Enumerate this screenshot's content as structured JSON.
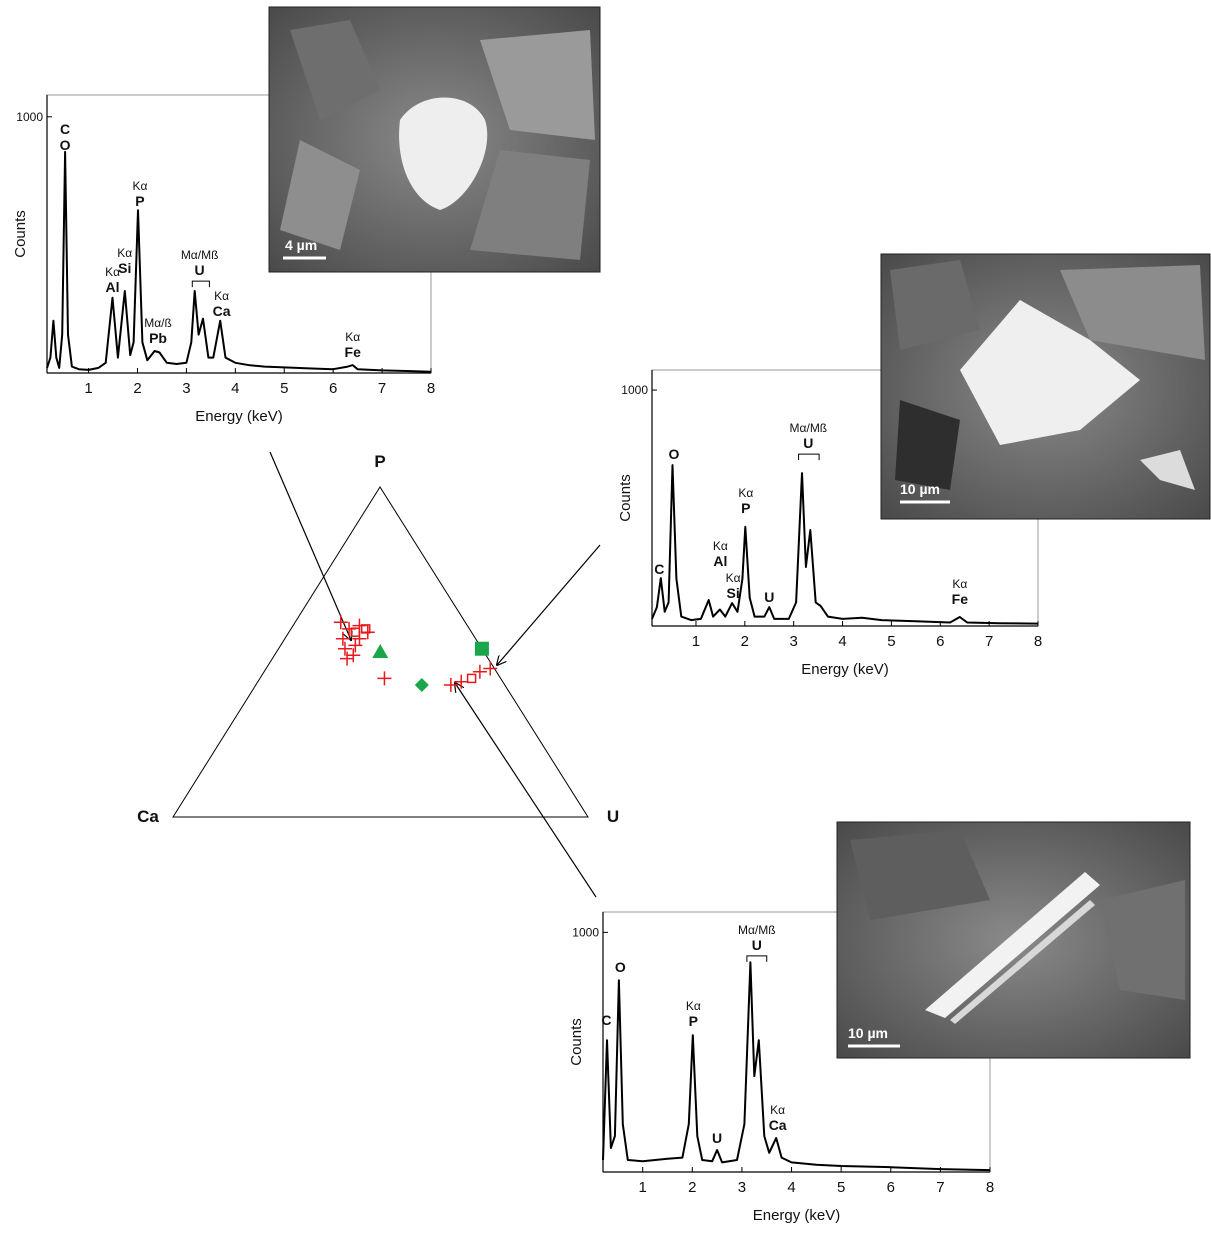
{
  "chart_data": [
    {
      "type": "spectrum",
      "xlabel": "Energy (keV)",
      "ylabel": "Counts",
      "xlim": [
        0.15,
        8
      ],
      "xticks": [
        1,
        2,
        3,
        4,
        5,
        6,
        7,
        8
      ],
      "ylim": [
        0,
        1085
      ],
      "yticks": [
        1000
      ],
      "color": "#000000",
      "x": [
        0.15,
        0.22,
        0.28,
        0.34,
        0.4,
        0.46,
        0.52,
        0.58,
        0.66,
        0.8,
        1.0,
        1.2,
        1.35,
        1.49,
        1.6,
        1.74,
        1.85,
        1.92,
        2.01,
        2.1,
        2.2,
        2.35,
        2.45,
        2.6,
        2.8,
        3.0,
        3.1,
        3.17,
        3.25,
        3.34,
        3.45,
        3.55,
        3.69,
        3.8,
        4.0,
        4.3,
        4.6,
        5.0,
        5.5,
        6.0,
        6.3,
        6.4,
        6.5,
        7.0,
        7.5,
        8.0
      ],
      "values": [
        20,
        60,
        204,
        60,
        20,
        150,
        863,
        150,
        25,
        15,
        12,
        20,
        40,
        294,
        60,
        320,
        70,
        120,
        635,
        120,
        50,
        86,
        80,
        40,
        35,
        40,
        120,
        320,
        150,
        212,
        60,
        60,
        204,
        60,
        40,
        30,
        25,
        22,
        18,
        15,
        25,
        31,
        15,
        10,
        8,
        5
      ],
      "annotations": [
        {
          "x": 0.52,
          "y": 870,
          "texts": [
            "C",
            "O"
          ]
        },
        {
          "x": 1.49,
          "y": 316,
          "texts": [
            "Kα",
            "Al"
          ]
        },
        {
          "x": 1.74,
          "y": 390,
          "texts": [
            "Kα",
            "Si"
          ]
        },
        {
          "x": 2.05,
          "y": 652,
          "texts": [
            "Kα",
            "P"
          ]
        },
        {
          "x": 2.42,
          "y": 117,
          "texts": [
            "Mα/ß",
            "Pb"
          ]
        },
        {
          "x": 3.27,
          "y": 382,
          "texts": [
            "Mα/Mß",
            "U"
          ],
          "bracket": [
            3.12,
            3.47
          ]
        },
        {
          "x": 3.72,
          "y": 222,
          "texts": [
            "Kα",
            "Ca"
          ]
        },
        {
          "x": 6.4,
          "y": 62,
          "texts": [
            "Kα",
            "Fe"
          ]
        }
      ]
    },
    {
      "type": "ternary",
      "axes": [
        "P",
        "Ca",
        "U"
      ],
      "series": [
        {
          "color": "#e8191c",
          "marker": "plus",
          "values": [
            [
              0.59,
              0.3,
              0.11
            ],
            [
              0.57,
              0.29,
              0.14
            ],
            [
              0.58,
              0.26,
              0.16
            ],
            [
              0.54,
              0.32,
              0.14
            ],
            [
              0.52,
              0.3,
              0.18
            ],
            [
              0.51,
              0.33,
              0.16
            ],
            [
              0.49,
              0.32,
              0.19
            ],
            [
              0.56,
              0.25,
              0.19
            ],
            [
              0.54,
              0.28,
              0.18
            ],
            [
              0.48,
              0.34,
              0.18
            ],
            [
              0.42,
              0.28,
              0.3
            ],
            [
              0.4,
              0.13,
              0.47
            ],
            [
              0.41,
              0.1,
              0.49
            ],
            [
              0.44,
              0.04,
              0.52
            ],
            [
              0.45,
              0.01,
              0.54
            ]
          ]
        },
        {
          "color": "#e8191c",
          "marker": "open-square",
          "values": [
            [
              0.56,
              0.28,
              0.16
            ],
            [
              0.57,
              0.25,
              0.18
            ],
            [
              0.42,
              0.07,
              0.51
            ]
          ]
        },
        {
          "color": "#1aa64a",
          "marker": "triangle",
          "values": [
            [
              0.5,
              0.25,
              0.25
            ]
          ]
        },
        {
          "color": "#1aa64a",
          "marker": "square",
          "values": [
            [
              0.51,
              0.0,
              0.49
            ]
          ]
        },
        {
          "color": "#1aa64a",
          "marker": "diamond",
          "values": [
            [
              0.4,
              0.2,
              0.4
            ]
          ]
        }
      ]
    },
    {
      "type": "spectrum",
      "xlabel": "Energy (keV)",
      "ylabel": "Counts",
      "xlim": [
        0.1,
        8
      ],
      "xticks": [
        1,
        2,
        3,
        4,
        5,
        6,
        7,
        8
      ],
      "ylim": [
        0,
        1085
      ],
      "yticks": [
        1000
      ],
      "color": "#000000",
      "x": [
        0.1,
        0.2,
        0.28,
        0.36,
        0.44,
        0.52,
        0.6,
        0.7,
        0.9,
        1.1,
        1.26,
        1.35,
        1.49,
        1.6,
        1.74,
        1.85,
        1.95,
        2.01,
        2.1,
        2.2,
        2.4,
        2.5,
        2.6,
        2.9,
        3.05,
        3.17,
        3.25,
        3.34,
        3.45,
        3.55,
        3.7,
        4.0,
        4.4,
        4.8,
        5.5,
        6.2,
        6.4,
        6.55,
        7.2,
        8.0
      ],
      "values": [
        30,
        80,
        203,
        60,
        100,
        682,
        200,
        40,
        25,
        30,
        110,
        40,
        70,
        40,
        97,
        60,
        200,
        420,
        120,
        40,
        40,
        80,
        30,
        30,
        100,
        648,
        250,
        407,
        100,
        85,
        40,
        30,
        35,
        25,
        20,
        15,
        38,
        15,
        12,
        10
      ],
      "annotations": [
        {
          "x": 0.25,
          "y": 220,
          "texts": [
            "C"
          ]
        },
        {
          "x": 0.55,
          "y": 708,
          "texts": [
            "O"
          ]
        },
        {
          "x": 1.5,
          "y": 254,
          "texts": [
            "Kα",
            "Al"
          ]
        },
        {
          "x": 1.76,
          "y": 119,
          "texts": [
            "Kα",
            "Si"
          ]
        },
        {
          "x": 2.02,
          "y": 479,
          "texts": [
            "Kα",
            "P"
          ]
        },
        {
          "x": 2.5,
          "y": 102,
          "texts": [
            "U"
          ]
        },
        {
          "x": 3.3,
          "y": 754,
          "texts": [
            "Mα/Mß",
            "U"
          ],
          "bracket": [
            3.1,
            3.52
          ]
        },
        {
          "x": 6.4,
          "y": 93,
          "texts": [
            "Kα",
            "Fe"
          ]
        }
      ]
    },
    {
      "type": "spectrum",
      "xlabel": "Energy (keV)",
      "ylabel": "Counts",
      "xlim": [
        0.2,
        8
      ],
      "xticks": [
        1,
        2,
        3,
        4,
        5,
        6,
        7,
        8
      ],
      "ylim": [
        0,
        1085
      ],
      "yticks": [
        1000
      ],
      "color": "#000000",
      "x": [
        0.2,
        0.28,
        0.36,
        0.44,
        0.52,
        0.6,
        0.7,
        1.0,
        1.5,
        1.8,
        1.93,
        2.01,
        2.1,
        2.2,
        2.4,
        2.5,
        2.6,
        2.9,
        3.05,
        3.17,
        3.25,
        3.34,
        3.45,
        3.55,
        3.69,
        3.8,
        4.0,
        4.5,
        5.0,
        6.0,
        7.0,
        8.0
      ],
      "values": [
        50,
        550,
        100,
        150,
        800,
        200,
        50,
        45,
        55,
        60,
        200,
        571,
        150,
        50,
        45,
        92,
        40,
        50,
        200,
        875,
        400,
        550,
        150,
        80,
        142,
        60,
        40,
        30,
        25,
        20,
        12,
        8
      ],
      "annotations": [
        {
          "x": 0.27,
          "y": 614,
          "texts": [
            "C"
          ]
        },
        {
          "x": 0.55,
          "y": 835,
          "texts": [
            "O"
          ]
        },
        {
          "x": 2.02,
          "y": 609,
          "texts": [
            "Kα",
            "P"
          ]
        },
        {
          "x": 2.5,
          "y": 121,
          "texts": [
            "U"
          ]
        },
        {
          "x": 3.3,
          "y": 927,
          "texts": [
            "Mα/Mß",
            "U"
          ],
          "bracket": [
            3.1,
            3.5
          ]
        },
        {
          "x": 3.72,
          "y": 175,
          "texts": [
            "Kα",
            "Ca"
          ]
        }
      ]
    }
  ],
  "images": [
    {
      "scale_bar": "4 µm"
    },
    {
      "scale_bar": "10 µm"
    },
    {
      "scale_bar": "10 µm"
    }
  ]
}
